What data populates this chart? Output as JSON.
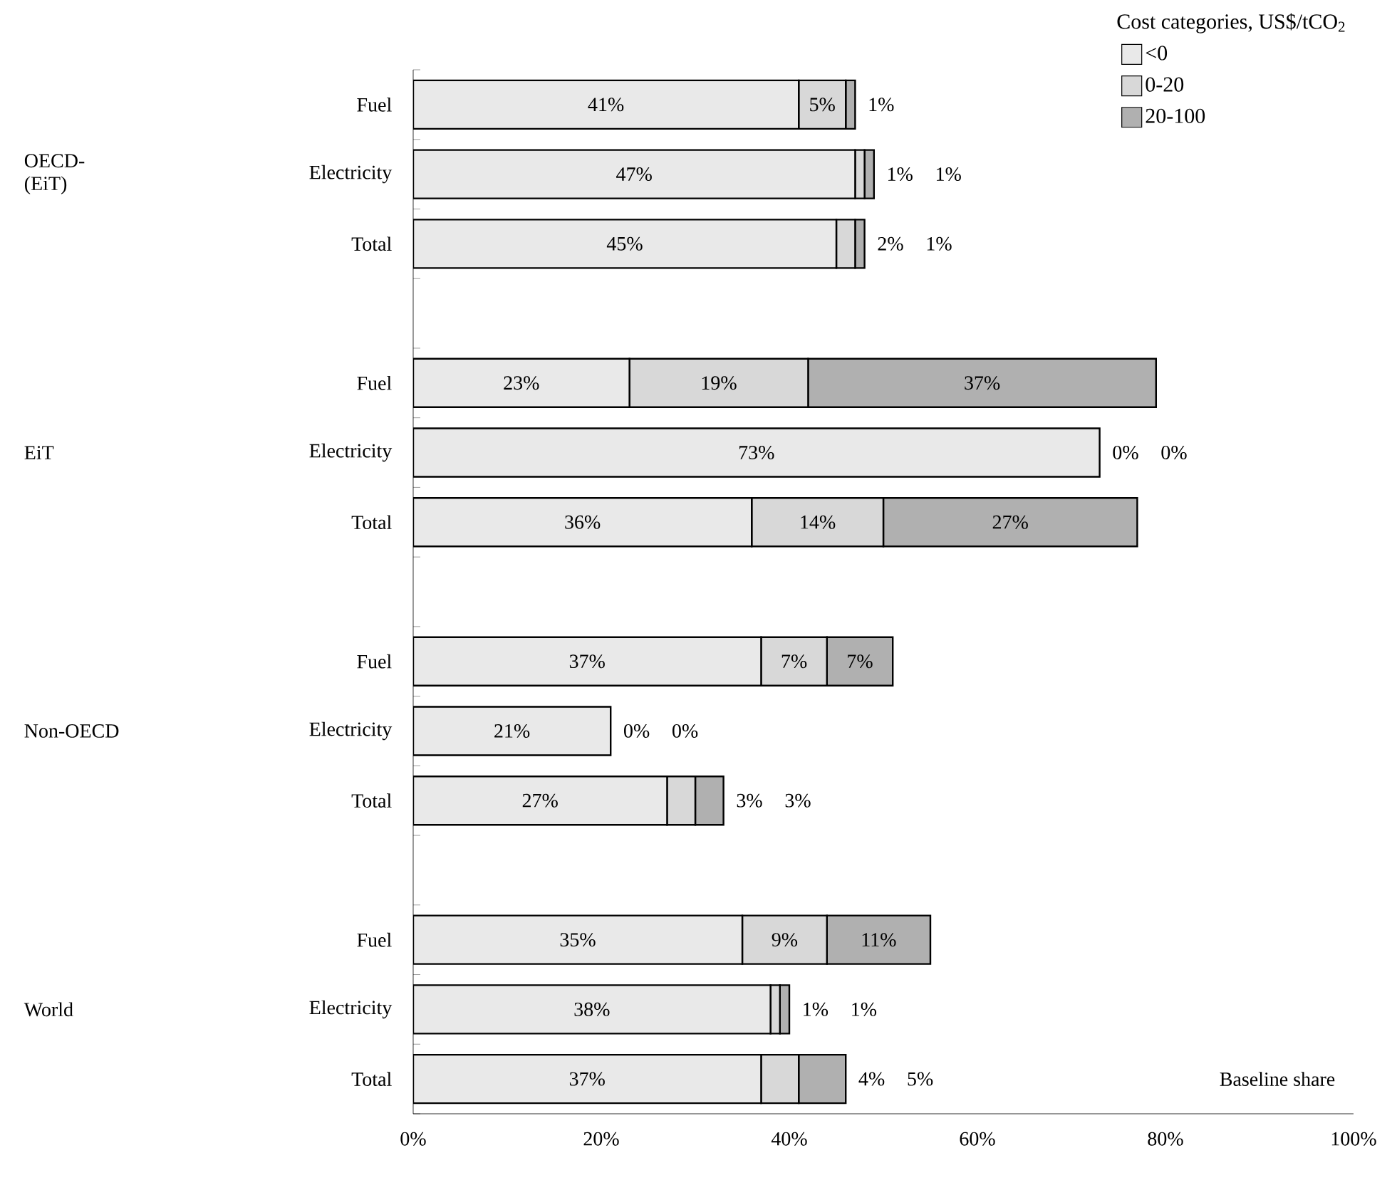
{
  "chart_data": {
    "type": "bar",
    "orientation": "horizontal",
    "stacked": true,
    "legend": "top right",
    "grid": false,
    "legend_title": "Cost categories, US$/tCO$_{2}$",
    "categories": [
      "Fuel",
      "Electricity",
      "Total",
      null,
      "Fuel",
      "Electricity",
      "Total",
      null,
      "Fuel",
      "Electricity",
      "Total",
      null,
      "Fuel",
      "Electricity",
      "Total"
    ],
    "series": [
      {
        "name": "<0",
        "color": "#e9e9e9",
        "values": [
          41,
          47,
          45,
          null,
          23,
          73,
          36,
          null,
          37,
          21,
          27,
          null,
          35,
          38,
          37
        ],
        "value_labels": [
          "41%",
          "47%",
          "45%",
          null,
          "23%",
          "73%",
          "36%",
          null,
          "37%",
          "21%",
          "27%",
          null,
          "35%",
          "38%",
          "37%"
        ]
      },
      {
        "name": "0-20",
        "color": "#d8d8d8",
        "values": [
          5,
          1,
          2,
          null,
          19,
          0,
          14,
          null,
          7,
          0,
          3,
          null,
          9,
          1,
          4
        ],
        "value_labels": [
          "5%",
          "1%",
          "2%",
          null,
          "19%",
          "0%",
          "14%",
          null,
          "7%",
          "0%",
          "3%",
          null,
          "9%",
          "1%",
          "4%"
        ]
      },
      {
        "name": "20-100",
        "color": "#b0b0b0",
        "values": [
          1,
          1,
          1,
          null,
          37,
          0,
          27,
          null,
          7,
          0,
          3,
          null,
          11,
          1,
          5
        ],
        "value_labels": [
          "1%",
          "1%",
          "1%",
          null,
          "37%",
          "0%",
          "27%",
          null,
          "7%",
          "0%",
          "3%",
          null,
          "11%",
          "1%",
          "5%"
        ]
      }
    ],
    "xlim": [
      0,
      100
    ],
    "xticks": [
      {
        "value": 0,
        "label": "0%"
      },
      {
        "value": 20,
        "label": "20%"
      },
      {
        "value": 40,
        "label": "40%"
      },
      {
        "value": 60,
        "label": "60%"
      },
      {
        "value": 80,
        "label": "80%"
      },
      {
        "value": 100,
        "label": "100%"
      }
    ],
    "annotations": [
      "OECD-(EiT)",
      "EiT",
      "Non-OECD",
      "World",
      "Baseline share"
    ]
  }
}
